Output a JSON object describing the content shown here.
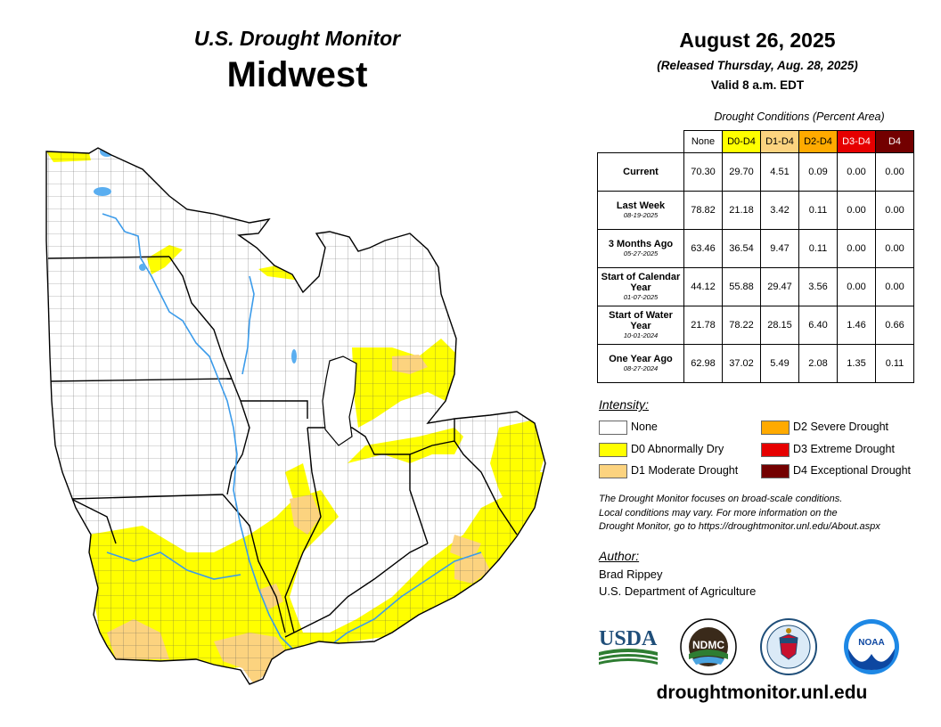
{
  "header": {
    "program": "U.S. Drought Monitor",
    "region": "Midwest",
    "date": "August 26, 2025",
    "released": "(Released Thursday, Aug. 28, 2025)",
    "valid": "Valid 8 a.m. EDT"
  },
  "stats": {
    "caption": "Drought Conditions (Percent Area)",
    "columns": [
      "None",
      "D0-D4",
      "D1-D4",
      "D2-D4",
      "D3-D4",
      "D4"
    ],
    "column_colors": [
      "#ffffff",
      "#ffff00",
      "#fcd37f",
      "#ffaa00",
      "#e60000",
      "#730000"
    ],
    "rows": [
      {
        "label": "Current",
        "date": "",
        "values": [
          "70.30",
          "29.70",
          "4.51",
          "0.09",
          "0.00",
          "0.00"
        ]
      },
      {
        "label": "Last Week",
        "date": "08-19-2025",
        "values": [
          "78.82",
          "21.18",
          "3.42",
          "0.11",
          "0.00",
          "0.00"
        ]
      },
      {
        "label": "3 Months Ago",
        "date": "05-27-2025",
        "values": [
          "63.46",
          "36.54",
          "9.47",
          "0.11",
          "0.00",
          "0.00"
        ]
      },
      {
        "label": "Start of Calendar Year",
        "date": "01-07-2025",
        "values": [
          "44.12",
          "55.88",
          "29.47",
          "3.56",
          "0.00",
          "0.00"
        ]
      },
      {
        "label": "Start of Water Year",
        "date": "10-01-2024",
        "values": [
          "21.78",
          "78.22",
          "28.15",
          "6.40",
          "1.46",
          "0.66"
        ]
      },
      {
        "label": "One Year Ago",
        "date": "08-27-2024",
        "values": [
          "62.98",
          "37.02",
          "5.49",
          "2.08",
          "1.35",
          "0.11"
        ]
      }
    ]
  },
  "legend": {
    "title": "Intensity:",
    "items": [
      {
        "label": "None",
        "color": "#ffffff"
      },
      {
        "label": "D0 Abnormally Dry",
        "color": "#ffff00"
      },
      {
        "label": "D1 Moderate Drought",
        "color": "#fcd37f"
      },
      {
        "label": "D2 Severe Drought",
        "color": "#ffaa00"
      },
      {
        "label": "D3 Extreme Drought",
        "color": "#e60000"
      },
      {
        "label": "D4 Exceptional Drought",
        "color": "#730000"
      }
    ]
  },
  "note": {
    "line1": "The Drought Monitor focuses on broad-scale conditions.",
    "line2": "Local conditions may vary. For more information on the",
    "line3": "Drought Monitor, go to https://droughtmonitor.unl.edu/About.aspx"
  },
  "author": {
    "title": "Author:",
    "name": "Brad Rippey",
    "org": "U.S. Department of Agriculture"
  },
  "logos": {
    "usda": "USDA",
    "ndmc": "NDMC",
    "noaa": "NOAA"
  },
  "website": "droughtmonitor.unl.edu",
  "colors": {
    "water": "#5aaef0",
    "lines": "#333333"
  }
}
